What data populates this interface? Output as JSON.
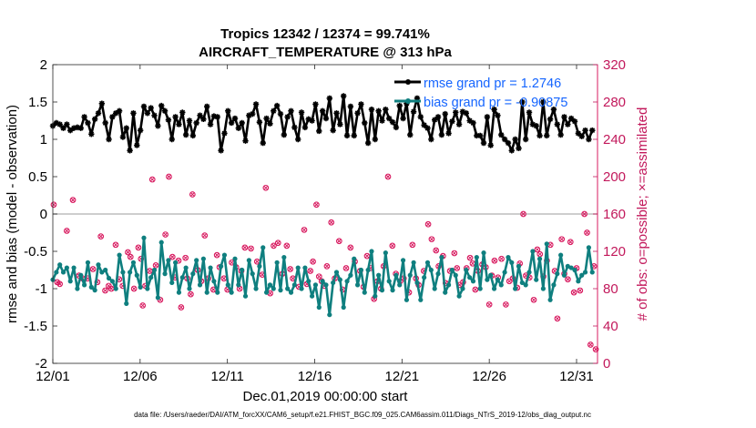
{
  "chart_data": {
    "type": "line",
    "title_line1": "Tropics 12342 / 12374 = 99.741%",
    "title_line2": "AIRCRAFT_TEMPERATURE @ 313 hPa",
    "xlabel": "Dec.01,2019 00:00:00 start",
    "ylabel_left": "rmse and bias (model - observation)",
    "ylabel_right": "# of obs: o=possible; ×=assimilated",
    "footnote": "data file: /Users/raeder/DAI/ATM_forcXX/CAM6_setup/f.e21.FHIST_BGC.f09_025.CAM6assim.011/Diags_NTrS_2019-12/obs_diag_output.nc",
    "x_tick_labels": [
      "12/01",
      "12/06",
      "12/11",
      "12/16",
      "12/21",
      "12/26",
      "12/31"
    ],
    "x_tick_days": [
      1,
      6,
      11,
      16,
      21,
      26,
      31
    ],
    "xlim": [
      1,
      32.2
    ],
    "ylim_left": [
      -2,
      2
    ],
    "ylim_right": [
      0,
      320
    ],
    "y_ticks_left": [
      "2",
      "1.5",
      "1",
      "0.5",
      "0",
      "-0.5",
      "-1",
      "-1.5",
      "-2"
    ],
    "y_ticks_right": [
      "320",
      "280",
      "240",
      "200",
      "160",
      "120",
      "80",
      "40",
      "0"
    ],
    "zero_line": 0,
    "legend_position": "top-right",
    "colors": {
      "rmse": "#000000",
      "bias": "#0f7f7f",
      "obs": "#d81b60",
      "legend_text": "#1565ff",
      "right_axis": "#c2185b"
    },
    "series": [
      {
        "name": "rmse",
        "legend": "rmse grand pr = 1.2746",
        "values": [
          1.18,
          1.22,
          1.2,
          1.15,
          1.2,
          1.12,
          1.15,
          1.16,
          1.15,
          1.3,
          1.22,
          1.07,
          1.27,
          1.35,
          1.48,
          1.22,
          1.0,
          1.3,
          1.35,
          1.38,
          1.03,
          1.15,
          0.85,
          1.35,
          0.92,
          1.12,
          1.44,
          1.35,
          1.42,
          1.32,
          1.18,
          1.45,
          1.38,
          1.26,
          1.0,
          1.3,
          1.2,
          1.36,
          1.06,
          1.25,
          1.05,
          1.22,
          1.32,
          1.27,
          1.44,
          1.2,
          1.31,
          1.3,
          0.85,
          1.08,
          1.38,
          1.22,
          1.28,
          1.15,
          1.22,
          0.98,
          1.32,
          1.34,
          1.47,
          1.23,
          0.95,
          1.28,
          1.21,
          1.38,
          1.45,
          1.34,
          1.06,
          1.3,
          1.38,
          1.16,
          1.0,
          1.36,
          1.16,
          1.27,
          1.25,
          1.47,
          1.11,
          1.38,
          1.28,
          1.55,
          1.12,
          1.35,
          1.2,
          1.58,
          1.05,
          1.44,
          1.05,
          1.35,
          1.47,
          1.22,
          0.95,
          1.4,
          1.0,
          1.38,
          1.25,
          1.4,
          1.28,
          1.23,
          1.16,
          1.45,
          1.28,
          1.48,
          1.06,
          1.37,
          1.55,
          1.3,
          1.19,
          1.15,
          1.0,
          1.26,
          1.3,
          1.06,
          1.34,
          1.08,
          1.24,
          1.36,
          1.2,
          1.37,
          1.35,
          1.25,
          1.22,
          1.05,
          1.05,
          0.95,
          1.3,
          0.92,
          1.4,
          1.32,
          1.06,
          1.0,
          0.95,
          0.85,
          1.0,
          0.88,
          1.5,
          1.0,
          1.36,
          1.2,
          1.18,
          1.05,
          1.5,
          1.05,
          1.27,
          1.4,
          1.2,
          1.06,
          1.3,
          1.2,
          1.28,
          1.24,
          1.08,
          1.04,
          1.12,
          1.0,
          1.12
        ]
      },
      {
        "name": "bias",
        "legend": "bias grand pr = -0.90875",
        "values": [
          -0.88,
          -0.78,
          -0.68,
          -0.78,
          -0.72,
          -0.9,
          -0.72,
          -1.0,
          -0.82,
          -0.95,
          -0.65,
          -0.98,
          -1.02,
          -0.68,
          -0.78,
          -0.75,
          -0.86,
          -0.9,
          -1.0,
          -0.55,
          -0.78,
          -1.2,
          -0.78,
          -0.65,
          -0.82,
          -0.98,
          -0.32,
          -1.0,
          -0.85,
          -0.75,
          -1.12,
          -0.38,
          -0.8,
          -0.62,
          -0.92,
          -0.65,
          -1.05,
          -0.85,
          -0.72,
          -1.0,
          -0.8,
          -0.62,
          -0.95,
          -0.6,
          -1.05,
          -0.72,
          -0.9,
          -1.05,
          -0.7,
          -0.55,
          -0.95,
          -1.05,
          -0.6,
          -0.95,
          -0.75,
          -1.1,
          -0.62,
          -0.8,
          -1.0,
          -0.7,
          -0.45,
          -1.05,
          -0.95,
          -1.0,
          -0.65,
          -1.02,
          -0.58,
          -1.0,
          -1.05,
          -0.95,
          -0.72,
          -1.0,
          -0.72,
          -0.9,
          -1.1,
          -0.95,
          -1.25,
          -0.9,
          -0.95,
          -1.35,
          -0.92,
          -0.78,
          -0.88,
          -1.25,
          -0.9,
          -0.82,
          -0.6,
          -0.95,
          -0.75,
          -1.05,
          -0.75,
          -0.5,
          -1.1,
          -0.82,
          -1.02,
          -0.52,
          -0.9,
          -1.02,
          -0.82,
          -0.95,
          -0.62,
          -1.15,
          -0.82,
          -0.65,
          -0.92,
          -1.15,
          -0.85,
          -0.65,
          -0.75,
          -1.0,
          -0.8,
          -0.58,
          -1.05,
          -0.95,
          -0.75,
          -0.82,
          -1.1,
          -1.0,
          -0.75,
          -0.85,
          -0.9,
          -0.58,
          -1.0,
          -0.52,
          -0.88,
          -0.82,
          -1.0,
          -0.88,
          -0.95,
          -0.78,
          -0.58,
          -0.65,
          -1.0,
          -0.7,
          -0.92,
          -0.95,
          -0.78,
          -0.5,
          -0.88,
          -0.6,
          -1.0,
          -0.4,
          -1.15,
          -0.95,
          -0.8,
          -0.55,
          -0.82,
          -0.7,
          -0.72,
          -0.75,
          -0.9,
          -0.82,
          -0.78,
          -0.45,
          -0.78
        ]
      },
      {
        "name": "obs_possible",
        "points": [
          [
            1.05,
            170
          ],
          [
            1.25,
            87
          ],
          [
            1.4,
            85
          ],
          [
            1.8,
            142
          ],
          [
            2.15,
            175
          ],
          [
            2.5,
            94
          ],
          [
            2.7,
            91
          ],
          [
            3.0,
            91
          ],
          [
            3.3,
            101
          ],
          [
            3.55,
            87
          ],
          [
            3.75,
            136
          ],
          [
            4.0,
            78
          ],
          [
            4.2,
            83
          ],
          [
            4.35,
            80
          ],
          [
            4.6,
            127
          ],
          [
            4.8,
            90
          ],
          [
            5.0,
            83
          ],
          [
            5.3,
            119
          ],
          [
            5.45,
            114
          ],
          [
            5.65,
            80
          ],
          [
            5.9,
            124
          ],
          [
            6.05,
            112
          ],
          [
            6.15,
            62
          ],
          [
            6.3,
            83
          ],
          [
            6.55,
            99
          ],
          [
            6.7,
            197
          ],
          [
            6.9,
            105
          ],
          [
            7.15,
            68
          ],
          [
            7.45,
            138
          ],
          [
            7.65,
            200
          ],
          [
            7.85,
            114
          ],
          [
            8.0,
            92
          ],
          [
            8.2,
            110
          ],
          [
            8.35,
            60
          ],
          [
            8.6,
            113
          ],
          [
            8.7,
            91
          ],
          [
            8.9,
            74
          ],
          [
            9.0,
            181
          ],
          [
            9.3,
            100
          ],
          [
            9.5,
            88
          ],
          [
            9.7,
            137
          ],
          [
            9.9,
            91
          ],
          [
            10.2,
            79
          ],
          [
            10.4,
            116
          ],
          [
            10.55,
            103
          ],
          [
            10.8,
            91
          ],
          [
            11.0,
            79
          ],
          [
            11.25,
            108
          ],
          [
            11.5,
            103
          ],
          [
            11.7,
            80
          ],
          [
            11.8,
            99
          ],
          [
            12.0,
            124
          ],
          [
            12.35,
            123
          ],
          [
            12.7,
            109
          ],
          [
            13.0,
            95
          ],
          [
            13.2,
            188
          ],
          [
            13.45,
            75
          ],
          [
            13.65,
            126
          ],
          [
            13.9,
            129
          ],
          [
            14.15,
            96
          ],
          [
            14.4,
            126
          ],
          [
            14.6,
            101
          ],
          [
            14.75,
            91
          ],
          [
            15.1,
            82
          ],
          [
            15.4,
            143
          ],
          [
            15.55,
            85
          ],
          [
            15.75,
            99
          ],
          [
            15.9,
            109
          ],
          [
            16.1,
            170
          ],
          [
            16.25,
            93
          ],
          [
            16.4,
            88
          ],
          [
            16.55,
            83
          ],
          [
            16.7,
            104
          ],
          [
            16.95,
            151
          ],
          [
            17.15,
            91
          ],
          [
            17.4,
            131
          ],
          [
            17.6,
            79
          ],
          [
            17.8,
            102
          ],
          [
            18.05,
            124
          ],
          [
            18.3,
            109
          ],
          [
            18.6,
            99
          ],
          [
            18.8,
            82
          ],
          [
            19.0,
            115
          ],
          [
            19.2,
            102
          ],
          [
            19.4,
            69
          ],
          [
            19.6,
            88
          ],
          [
            19.8,
            80
          ],
          [
            19.95,
            104
          ],
          [
            20.2,
            200
          ],
          [
            20.45,
            126
          ],
          [
            20.65,
            96
          ],
          [
            20.9,
            88
          ],
          [
            21.1,
            91
          ],
          [
            21.4,
            76
          ],
          [
            21.6,
            127
          ],
          [
            21.8,
            91
          ],
          [
            21.95,
            84
          ],
          [
            22.25,
            99
          ],
          [
            22.5,
            149
          ],
          [
            22.7,
            133
          ],
          [
            22.95,
            121
          ],
          [
            23.1,
            104
          ],
          [
            23.35,
            115
          ],
          [
            23.5,
            86
          ],
          [
            23.75,
            99
          ],
          [
            24.0,
            118
          ],
          [
            24.15,
            102
          ],
          [
            24.3,
            84
          ],
          [
            24.5,
            87
          ],
          [
            24.7,
            102
          ],
          [
            24.9,
            113
          ],
          [
            25.05,
            107
          ],
          [
            25.2,
            79
          ],
          [
            25.35,
            99
          ],
          [
            25.6,
            106
          ],
          [
            25.8,
            103
          ],
          [
            26.0,
            63
          ],
          [
            26.15,
            94
          ],
          [
            26.3,
            110
          ],
          [
            26.5,
            92
          ],
          [
            26.7,
            112
          ],
          [
            26.95,
            63
          ],
          [
            27.15,
            88
          ],
          [
            27.35,
            91
          ],
          [
            27.6,
            81
          ],
          [
            27.75,
            107
          ],
          [
            27.95,
            160
          ],
          [
            28.1,
            94
          ],
          [
            28.3,
            92
          ],
          [
            28.55,
            68
          ],
          [
            28.75,
            122
          ],
          [
            28.9,
            117
          ],
          [
            29.1,
            93
          ],
          [
            29.3,
            110
          ],
          [
            29.5,
            127
          ],
          [
            29.75,
            99
          ],
          [
            29.9,
            48
          ],
          [
            30.15,
            133
          ],
          [
            30.3,
            96
          ],
          [
            30.5,
            90
          ],
          [
            30.65,
            130
          ],
          [
            30.85,
            76
          ],
          [
            31.0,
            102
          ],
          [
            31.2,
            78
          ],
          [
            31.45,
            160
          ],
          [
            31.6,
            140
          ],
          [
            31.8,
            20
          ],
          [
            32.0,
            104
          ],
          [
            32.1,
            15
          ]
        ]
      }
    ]
  }
}
